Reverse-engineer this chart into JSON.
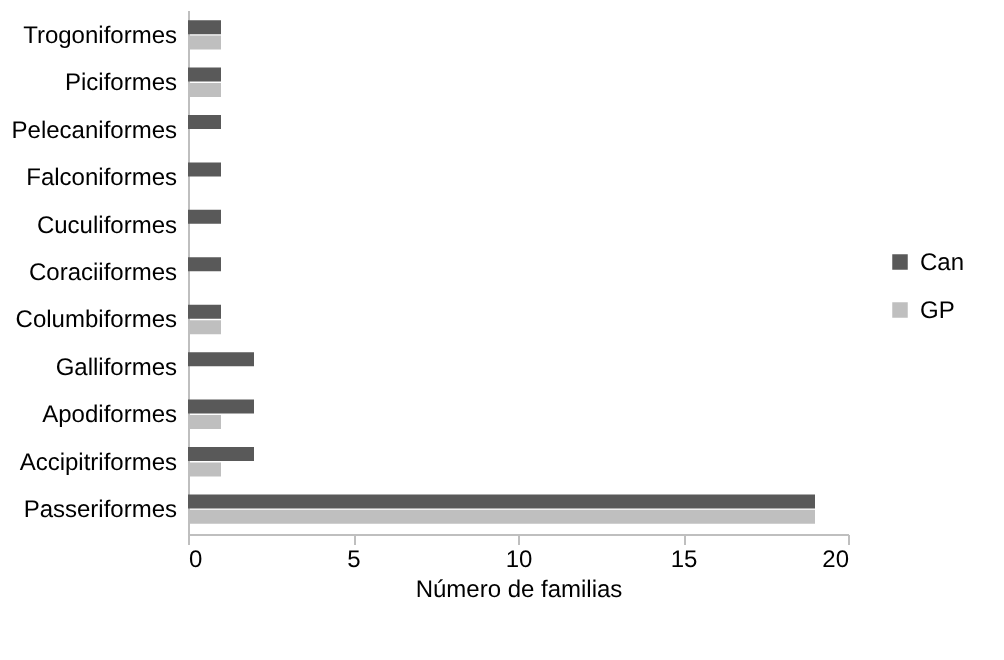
{
  "chart_data": {
    "type": "bar",
    "orientation": "horizontal",
    "xlabel": "Número de familias",
    "categories": [
      "Trogoniformes",
      "Piciformes",
      "Pelecaniformes",
      "Falconiformes",
      "Cuculiformes",
      "Coraciiformes",
      "Columbiformes",
      "Galliformes",
      "Apodiformes",
      "Accipitriformes",
      "Passeriformes"
    ],
    "series": [
      {
        "name": "Can",
        "color": "#595959",
        "values": [
          1,
          1,
          1,
          1,
          1,
          1,
          1,
          2,
          2,
          2,
          19
        ]
      },
      {
        "name": "GP",
        "color": "#bfbfbf",
        "values": [
          1,
          1,
          0,
          0,
          0,
          0,
          1,
          0,
          1,
          1,
          19
        ]
      }
    ],
    "xlim": [
      0,
      20
    ],
    "xticks": [
      0,
      5,
      10,
      15,
      20
    ],
    "grid": false,
    "legend": "right"
  }
}
